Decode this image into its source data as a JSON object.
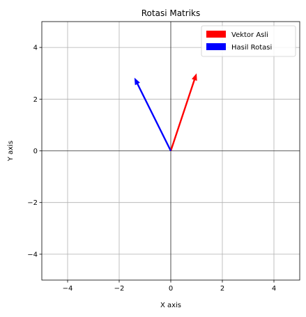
{
  "chart_data": {
    "type": "quiver",
    "title": "Rotasi Matriks",
    "xlabel": "X axis",
    "ylabel": "Y axis",
    "xlim": [
      -5,
      5
    ],
    "ylim": [
      -5,
      5
    ],
    "xticks": [
      -4,
      -2,
      0,
      2,
      4
    ],
    "yticks": [
      -4,
      -2,
      0,
      2,
      4
    ],
    "grid": true,
    "legend_position": "top-right",
    "series": [
      {
        "name": "Vektor Asli",
        "color": "#ff0000",
        "origin": [
          0,
          0
        ],
        "vector": [
          1,
          3
        ]
      },
      {
        "name": "Hasil Rotasi",
        "color": "#0000ff",
        "origin": [
          0,
          0
        ],
        "vector": [
          -1.41,
          2.83
        ]
      }
    ]
  }
}
